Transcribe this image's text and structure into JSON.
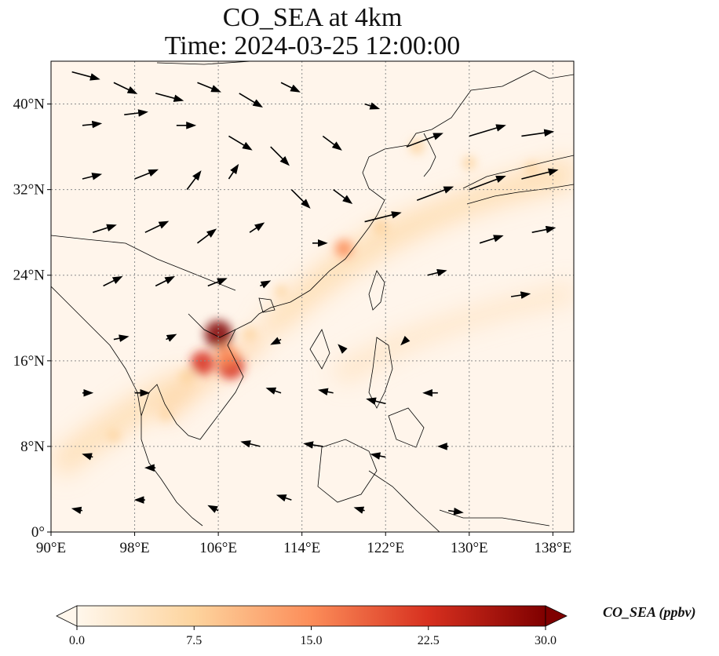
{
  "title": {
    "line1": "CO_SEA at 4km",
    "line2": "Time: 2024-03-25 12:00:00"
  },
  "map": {
    "lon_range": [
      90,
      140
    ],
    "lat_range": [
      0,
      44
    ],
    "lon_ticks": [
      {
        "value": 90,
        "label": "90°E"
      },
      {
        "value": 98,
        "label": "98°E"
      },
      {
        "value": 106,
        "label": "106°E"
      },
      {
        "value": 114,
        "label": "114°E"
      },
      {
        "value": 122,
        "label": "122°E"
      },
      {
        "value": 130,
        "label": "130°E"
      },
      {
        "value": 138,
        "label": "138°E"
      }
    ],
    "lat_ticks": [
      {
        "value": 0,
        "label": "0°"
      },
      {
        "value": 8,
        "label": "8°N"
      },
      {
        "value": 16,
        "label": "16°N"
      },
      {
        "value": 24,
        "label": "24°N"
      },
      {
        "value": 32,
        "label": "32°N"
      },
      {
        "value": 40,
        "label": "40°N"
      }
    ],
    "gridlines": true,
    "colormap": "OrRd",
    "plumes": [
      {
        "lon": 106.0,
        "lat": 18.5,
        "value": 30
      },
      {
        "lon": 107.2,
        "lat": 15.5,
        "value": 28
      },
      {
        "lon": 104.5,
        "lat": 15.8,
        "value": 25
      },
      {
        "lon": 106.8,
        "lat": 16.5,
        "value": 22
      },
      {
        "lon": 103.0,
        "lat": 14.5,
        "value": 14
      },
      {
        "lon": 109.0,
        "lat": 18.5,
        "value": 10
      },
      {
        "lon": 118.0,
        "lat": 26.5,
        "value": 16
      },
      {
        "lon": 121.5,
        "lat": 28.5,
        "value": 14
      },
      {
        "lon": 125.0,
        "lat": 36.0,
        "value": 12
      },
      {
        "lon": 130.0,
        "lat": 34.5,
        "value": 10
      },
      {
        "lon": 136.0,
        "lat": 34.0,
        "value": 9
      },
      {
        "lon": 112.0,
        "lat": 22.5,
        "value": 8
      },
      {
        "lon": 96.0,
        "lat": 9.0,
        "value": 9
      },
      {
        "lon": 101.0,
        "lat": 11.0,
        "value": 8
      }
    ],
    "wind_vectors": [
      {
        "lon": 92,
        "lat": 43,
        "u": 3.0,
        "v": -0.8
      },
      {
        "lon": 96,
        "lat": 42,
        "u": 2.5,
        "v": -1.2
      },
      {
        "lon": 100,
        "lat": 41,
        "u": 3.0,
        "v": -0.8
      },
      {
        "lon": 104,
        "lat": 42,
        "u": 2.5,
        "v": -1.0
      },
      {
        "lon": 108,
        "lat": 41,
        "u": 2.5,
        "v": -1.5
      },
      {
        "lon": 112,
        "lat": 42,
        "u": 2.0,
        "v": -1.0
      },
      {
        "lon": 93,
        "lat": 38,
        "u": 2.0,
        "v": 0.2
      },
      {
        "lon": 97,
        "lat": 39,
        "u": 2.5,
        "v": 0.3
      },
      {
        "lon": 102,
        "lat": 38,
        "u": 2.0,
        "v": 0.0
      },
      {
        "lon": 107,
        "lat": 37,
        "u": 2.5,
        "v": -1.5
      },
      {
        "lon": 111,
        "lat": 36,
        "u": 2.0,
        "v": -2.0
      },
      {
        "lon": 116,
        "lat": 37,
        "u": 2.0,
        "v": -1.5
      },
      {
        "lon": 120,
        "lat": 40,
        "u": 1.5,
        "v": -0.5
      },
      {
        "lon": 93,
        "lat": 33,
        "u": 2.0,
        "v": 0.5
      },
      {
        "lon": 98,
        "lat": 33,
        "u": 2.5,
        "v": 1.0
      },
      {
        "lon": 103,
        "lat": 32,
        "u": 1.5,
        "v": 2.0
      },
      {
        "lon": 107,
        "lat": 33,
        "u": 1.0,
        "v": 1.5
      },
      {
        "lon": 113,
        "lat": 32,
        "u": 2.0,
        "v": -2.0
      },
      {
        "lon": 117,
        "lat": 32,
        "u": 2.0,
        "v": -1.5
      },
      {
        "lon": 94,
        "lat": 28,
        "u": 2.5,
        "v": 0.8
      },
      {
        "lon": 99,
        "lat": 28,
        "u": 2.5,
        "v": 1.2
      },
      {
        "lon": 104,
        "lat": 27,
        "u": 2.0,
        "v": 1.5
      },
      {
        "lon": 109,
        "lat": 28,
        "u": 1.5,
        "v": 1.0
      },
      {
        "lon": 115,
        "lat": 27,
        "u": 1.5,
        "v": 0.0
      },
      {
        "lon": 120,
        "lat": 29,
        "u": 4.0,
        "v": 1.0
      },
      {
        "lon": 125,
        "lat": 31,
        "u": 4.0,
        "v": 1.5
      },
      {
        "lon": 130,
        "lat": 32,
        "u": 4.0,
        "v": 1.5
      },
      {
        "lon": 135,
        "lat": 33,
        "u": 4.0,
        "v": 1.0
      },
      {
        "lon": 124,
        "lat": 36,
        "u": 4.0,
        "v": 1.5
      },
      {
        "lon": 130,
        "lat": 37,
        "u": 4.0,
        "v": 1.2
      },
      {
        "lon": 135,
        "lat": 37,
        "u": 3.5,
        "v": 0.5
      },
      {
        "lon": 95,
        "lat": 23,
        "u": 2.0,
        "v": 1.0
      },
      {
        "lon": 100,
        "lat": 23,
        "u": 2.0,
        "v": 1.0
      },
      {
        "lon": 105,
        "lat": 23,
        "u": 2.0,
        "v": 0.8
      },
      {
        "lon": 110,
        "lat": 23,
        "u": 1.0,
        "v": 0.5
      },
      {
        "lon": 126,
        "lat": 24,
        "u": 2.0,
        "v": 0.5
      },
      {
        "lon": 131,
        "lat": 27,
        "u": 2.5,
        "v": 0.8
      },
      {
        "lon": 136,
        "lat": 28,
        "u": 2.5,
        "v": 0.5
      },
      {
        "lon": 96,
        "lat": 18,
        "u": 1.5,
        "v": 0.3
      },
      {
        "lon": 101,
        "lat": 18,
        "u": 1.0,
        "v": 0.5
      },
      {
        "lon": 112,
        "lat": 18,
        "u": -1.0,
        "v": -0.5
      },
      {
        "lon": 118,
        "lat": 17,
        "u": -0.5,
        "v": 0.5
      },
      {
        "lon": 124,
        "lat": 18,
        "u": -0.5,
        "v": -0.5
      },
      {
        "lon": 93,
        "lat": 13,
        "u": 1.0,
        "v": 0.0
      },
      {
        "lon": 98,
        "lat": 13,
        "u": 1.5,
        "v": 0.0
      },
      {
        "lon": 112,
        "lat": 13,
        "u": -1.5,
        "v": 0.5
      },
      {
        "lon": 117,
        "lat": 13,
        "u": -1.5,
        "v": 0.3
      },
      {
        "lon": 122,
        "lat": 12,
        "u": -2.0,
        "v": 0.5
      },
      {
        "lon": 127,
        "lat": 13,
        "u": -1.5,
        "v": 0.0
      },
      {
        "lon": 94,
        "lat": 7,
        "u": -1.0,
        "v": 0.3
      },
      {
        "lon": 100,
        "lat": 6,
        "u": -1.0,
        "v": 0.0
      },
      {
        "lon": 110,
        "lat": 8,
        "u": -2.0,
        "v": 0.5
      },
      {
        "lon": 116,
        "lat": 8,
        "u": -2.0,
        "v": 0.3
      },
      {
        "lon": 122,
        "lat": 7,
        "u": -1.5,
        "v": 0.3
      },
      {
        "lon": 128,
        "lat": 8,
        "u": -1.0,
        "v": 0.0
      },
      {
        "lon": 93,
        "lat": 2,
        "u": -1.0,
        "v": 0.2
      },
      {
        "lon": 99,
        "lat": 3,
        "u": -1.0,
        "v": 0.0
      },
      {
        "lon": 106,
        "lat": 2,
        "u": -1.0,
        "v": 0.5
      },
      {
        "lon": 113,
        "lat": 3,
        "u": -1.5,
        "v": 0.5
      },
      {
        "lon": 120,
        "lat": 2,
        "u": -1.0,
        "v": 0.3
      },
      {
        "lon": 128,
        "lat": 2,
        "u": 1.5,
        "v": -0.2
      },
      {
        "lon": 134,
        "lat": 22,
        "u": 2.0,
        "v": 0.3
      }
    ]
  },
  "colorbar": {
    "label": "CO_SEA (ppbv)",
    "min": 0.0,
    "max": 30.0,
    "ticks": [
      {
        "value": 0.0,
        "label": "0.0"
      },
      {
        "value": 7.5,
        "label": "7.5"
      },
      {
        "value": 15.0,
        "label": "15.0"
      },
      {
        "value": 22.5,
        "label": "22.5"
      },
      {
        "value": 30.0,
        "label": "30.0"
      }
    ],
    "extend": "both"
  },
  "colors": {
    "background": "#fff5eb",
    "low": "#fee8c8",
    "mid": "#fdbb84",
    "high": "#e34a33",
    "max": "#7f0000",
    "coastline": "#000000",
    "grid": "#8c8c8c"
  }
}
